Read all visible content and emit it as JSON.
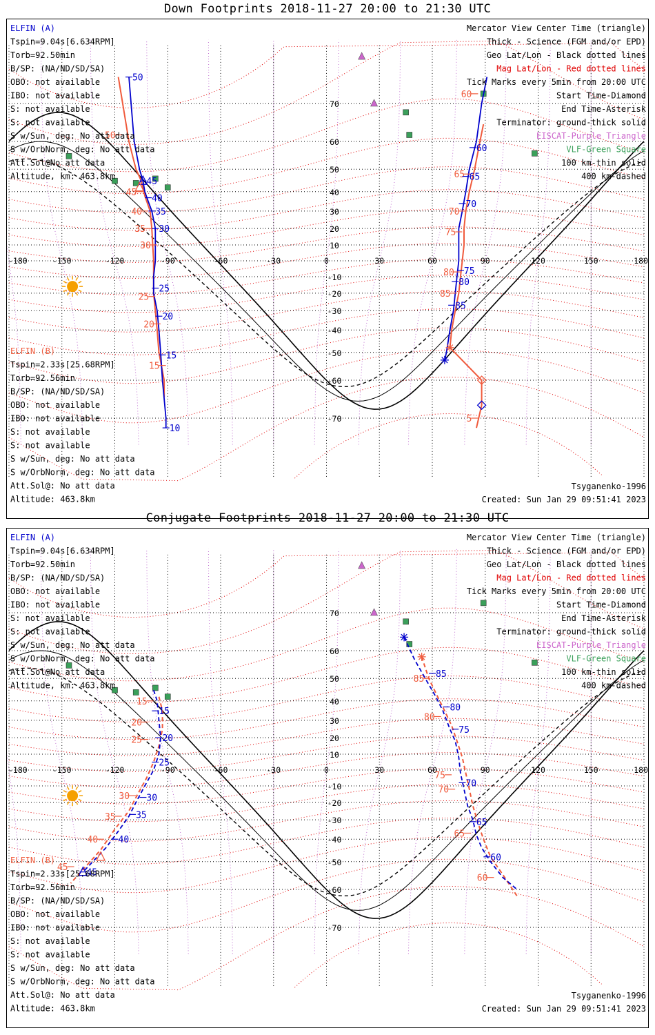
{
  "panels": [
    {
      "title": "Down Footprints 2018-11-27 20:00 to 21:30 UTC",
      "elfin_a": {
        "name": "ELFIN (A)",
        "lines": [
          "Tspin=9.04s[6.634RPM]",
          "Torb=92.50min",
          "B/SP: (NA/ND/SD/SA)",
          "OBO: not available",
          "IBO: not available",
          "S: not available",
          "S: not available",
          "S w/Sun, deg: No att data",
          "S w/OrbNorm, deg: No att data",
          "Att.Sol@No att data",
          "Altitude, km: 463.8km"
        ]
      },
      "elfin_b": {
        "name": "ELFIN (B)",
        "lines": [
          "Tspin=2.33s[25.68RPM]",
          "Torb=92.56min",
          "B/SP: (NA/ND/SD/SA)",
          "OBO: not available",
          "IBO: not available",
          "S: not available",
          "S: not available",
          "S w/Sun, deg: No att data",
          "S w/OrbNorm, deg: No att data",
          "Att.Sol@: No att data",
          "Altitude: 463.8km"
        ]
      },
      "legend": [
        {
          "text": "Mercator View Center Time (triangle)",
          "color": "#000000"
        },
        {
          "text": "Thick - Science (FGM and/or EPD)",
          "color": "#000000"
        },
        {
          "text": "Geo Lat/Lon - Black dotted lines",
          "color": "#000000"
        },
        {
          "text": "Mag Lat/Lon - Red dotted lines",
          "color": "#e00000"
        },
        {
          "text": "Tick Marks every 5min from 20:00 UTC",
          "color": "#000000"
        },
        {
          "text": "Start Time-Diamond",
          "color": "#000000"
        },
        {
          "text": "End Time-Asterisk",
          "color": "#000000"
        },
        {
          "text": "Terminator: ground-thick solid",
          "color": "#000000"
        },
        {
          "text": "EISCAT-Purple Triangle",
          "color": "#cc66cc"
        },
        {
          "text": "VLF-Green Square",
          "color": "#3aa05a"
        },
        {
          "text": "100 km-thin solid",
          "color": "#000000"
        },
        {
          "text": "400 km-dashed",
          "color": "#000000"
        }
      ],
      "model": "Tsyganenko-1996",
      "created": "Created: Sun Jan 29 09:51:41 2023",
      "a_track": {
        "west": [
          [
            -112,
            75
          ],
          [
            -109,
            60
          ],
          [
            -106,
            50
          ],
          [
            -104,
            45
          ],
          [
            -103,
            40
          ],
          [
            -101,
            35
          ],
          [
            -99,
            30
          ],
          [
            -97,
            20
          ],
          [
            -97,
            10
          ],
          [
            -97,
            0
          ],
          [
            -98,
            -10
          ],
          [
            -98,
            -20
          ],
          [
            -96,
            -30
          ],
          [
            -95,
            -40
          ],
          [
            -94,
            -50
          ],
          [
            -93,
            -60
          ],
          [
            -91,
            -70
          ],
          [
            -91,
            -72
          ]
        ],
        "east": [
          [
            91,
            75
          ],
          [
            88,
            70
          ],
          [
            85,
            60
          ],
          [
            81,
            50
          ],
          [
            79,
            40
          ],
          [
            77,
            30
          ],
          [
            75,
            20
          ],
          [
            75,
            10
          ],
          [
            75,
            0
          ],
          [
            74,
            -10
          ],
          [
            73,
            -20
          ],
          [
            72,
            -30
          ],
          [
            70,
            -40
          ],
          [
            68,
            -50
          ],
          [
            67,
            -53
          ]
        ],
        "ticks": [
          {
            "lon": -112,
            "lat": 75,
            "label": "50"
          },
          {
            "lon": -104,
            "lat": 45,
            "label": "45"
          },
          {
            "lon": -101,
            "lat": 37,
            "label": "40"
          },
          {
            "lon": -99,
            "lat": 30,
            "label": "35"
          },
          {
            "lon": -97,
            "lat": 20,
            "label": "30"
          },
          {
            "lon": -97,
            "lat": -17,
            "label": "25"
          },
          {
            "lon": -95,
            "lat": -33,
            "label": "20"
          },
          {
            "lon": -93,
            "lat": -51,
            "label": "15"
          },
          {
            "lon": -91,
            "lat": -72,
            "label": "10"
          },
          {
            "lon": 83,
            "lat": 58,
            "label": "60"
          },
          {
            "lon": 79,
            "lat": 47,
            "label": "65"
          },
          {
            "lon": 77,
            "lat": 34,
            "label": "70"
          },
          {
            "lon": 76,
            "lat": -6,
            "label": "75"
          },
          {
            "lon": 73,
            "lat": -13,
            "label": "80"
          },
          {
            "lon": 71,
            "lat": -27,
            "label": "85"
          }
        ]
      },
      "b_track": {
        "west": [
          [
            -118,
            75
          ],
          [
            -112,
            60
          ],
          [
            -108,
            50
          ],
          [
            -105,
            45
          ],
          [
            -103,
            38
          ],
          [
            -100,
            30
          ],
          [
            -99,
            20
          ],
          [
            -98,
            0
          ],
          [
            -98,
            -20
          ],
          [
            -97,
            -30
          ],
          [
            -96,
            -40
          ],
          [
            -95,
            -50
          ],
          [
            -92,
            -60
          ],
          [
            -92,
            -65
          ]
        ],
        "east": [
          [
            89,
            65
          ],
          [
            87,
            60
          ],
          [
            84,
            50
          ],
          [
            81,
            40
          ],
          [
            79,
            30
          ],
          [
            78,
            20
          ],
          [
            78,
            10
          ],
          [
            77,
            0
          ],
          [
            76,
            -10
          ],
          [
            75,
            -20
          ],
          [
            73,
            -30
          ],
          [
            71,
            -40
          ],
          [
            70,
            -48
          ],
          [
            88,
            -60
          ],
          [
            88,
            -67
          ],
          [
            85,
            -72
          ]
        ],
        "ticks": [
          {
            "lon": -118,
            "lat": 62,
            "label": "50"
          },
          {
            "lon": -106,
            "lat": 40,
            "label": "45"
          },
          {
            "lon": -103,
            "lat": 30,
            "label": "40"
          },
          {
            "lon": -101,
            "lat": 20,
            "label": "35"
          },
          {
            "lon": -98,
            "lat": 10,
            "label": "30"
          },
          {
            "lon": -99,
            "lat": -22,
            "label": "25"
          },
          {
            "lon": -96,
            "lat": -37,
            "label": "20"
          },
          {
            "lon": -93,
            "lat": -55,
            "label": "15"
          },
          {
            "lon": 84,
            "lat": 72,
            "label": "60"
          },
          {
            "lon": 80,
            "lat": 48,
            "label": "65"
          },
          {
            "lon": 77,
            "lat": 30,
            "label": "70"
          },
          {
            "lon": 75,
            "lat": 18,
            "label": "75"
          },
          {
            "lon": 74,
            "lat": -7,
            "label": "80"
          },
          {
            "lon": 72,
            "lat": -20,
            "label": "85"
          },
          {
            "lon": 84,
            "lat": -70,
            "label": "5"
          }
        ]
      }
    },
    {
      "title": "Conjugate Footprints 2018-11-27 20:00 to 21:30 UTC",
      "elfin_a": {
        "name": "ELFIN (A)",
        "lines": [
          "Tspin=9.04s[6.634RPM]",
          "Torb=92.50min",
          "B/SP: (NA/ND/SD/SA)",
          "OBO: not available",
          "IBO: not available",
          "S: not available",
          "S: not available",
          "S w/Sun, deg: No att data",
          "S w/OrbNorm, deg: No att data",
          "Att.Sol@No att data",
          "Altitude, km: 463.8km"
        ]
      },
      "elfin_b": {
        "name": "ELFIN (B)",
        "lines": [
          "Tspin=2.33s[25.68RPM]",
          "Torb=92.56min",
          "B/SP: (NA/ND/SD/SA)",
          "OBO: not available",
          "IBO: not available",
          "S: not available",
          "S: not available",
          "S w/Sun, deg: No att data",
          "S w/OrbNorm, deg: No att data",
          "Att.Sol@: No att data",
          "Altitude: 463.8km"
        ]
      },
      "legend": [
        {
          "text": "Mercator View Center Time (triangle)",
          "color": "#000000"
        },
        {
          "text": "Thick - Science (FGM and/or EPD)",
          "color": "#000000"
        },
        {
          "text": "Geo Lat/Lon - Black dotted lines",
          "color": "#000000"
        },
        {
          "text": "Mag Lat/Lon - Red dotted lines",
          "color": "#e00000"
        },
        {
          "text": "Tick Marks every 5min from 20:00 UTC",
          "color": "#000000"
        },
        {
          "text": "Start Time-Diamond",
          "color": "#000000"
        },
        {
          "text": "End Time-Asterisk",
          "color": "#000000"
        },
        {
          "text": "Terminator: ground-thick solid",
          "color": "#000000"
        },
        {
          "text": "EISCAT-Purple Triangle",
          "color": "#cc66cc"
        },
        {
          "text": "VLF-Green Square",
          "color": "#3aa05a"
        },
        {
          "text": "100 km-thin solid",
          "color": "#000000"
        },
        {
          "text": "400 km-dashed",
          "color": "#000000"
        }
      ],
      "model": "Tsyganenko-1996",
      "created": "Created: Sun Jan 29 09:51:41 2023",
      "a_track": {
        "west": [
          [
            -98,
            45
          ],
          [
            -96,
            40
          ],
          [
            -95,
            30
          ],
          [
            -94,
            20
          ],
          [
            -95,
            10
          ],
          [
            -98,
            0
          ],
          [
            -103,
            -10
          ],
          [
            -108,
            -20
          ],
          [
            -112,
            -28
          ],
          [
            -118,
            -36
          ],
          [
            -125,
            -44
          ],
          [
            -138,
            -54
          ]
        ],
        "east": [
          [
            44,
            64
          ],
          [
            50,
            57
          ],
          [
            56,
            50
          ],
          [
            62,
            42
          ],
          [
            66,
            35
          ],
          [
            70,
            25
          ],
          [
            73,
            18
          ],
          [
            75,
            8
          ],
          [
            76,
            -2
          ],
          [
            78,
            -12
          ],
          [
            80,
            -22
          ],
          [
            83,
            -30
          ],
          [
            85,
            -38
          ],
          [
            88,
            -44
          ],
          [
            93,
            -50
          ],
          [
            100,
            -56
          ],
          [
            108,
            -60
          ]
        ],
        "ticks": [
          {
            "lon": -97,
            "lat": 35,
            "label": "15"
          },
          {
            "lon": -95,
            "lat": 20,
            "label": "20"
          },
          {
            "lon": -97,
            "lat": 5,
            "label": "25"
          },
          {
            "lon": -104,
            "lat": -17,
            "label": "30"
          },
          {
            "lon": -110,
            "lat": -27,
            "label": "35"
          },
          {
            "lon": -120,
            "lat": -40,
            "label": "40"
          },
          {
            "lon": -138,
            "lat": -54,
            "label": "45"
          },
          {
            "lon": 60,
            "lat": 52,
            "label": "85"
          },
          {
            "lon": 68,
            "lat": 37,
            "label": "80"
          },
          {
            "lon": 73,
            "lat": 25,
            "label": "75"
          },
          {
            "lon": 77,
            "lat": -8,
            "label": "70"
          },
          {
            "lon": 83,
            "lat": -31,
            "label": "65"
          },
          {
            "lon": 91,
            "lat": -48,
            "label": "60"
          }
        ]
      },
      "b_track": {
        "west": [
          [
            -95,
            42
          ],
          [
            -93,
            35
          ],
          [
            -93,
            25
          ],
          [
            -95,
            15
          ],
          [
            -98,
            5
          ],
          [
            -102,
            -5
          ],
          [
            -107,
            -15
          ],
          [
            -112,
            -25
          ],
          [
            -120,
            -35
          ],
          [
            -128,
            -45
          ],
          [
            -145,
            -58
          ]
        ],
        "east": [
          [
            54,
            58
          ],
          [
            58,
            50
          ],
          [
            63,
            42
          ],
          [
            67,
            35
          ],
          [
            71,
            27
          ],
          [
            74,
            18
          ],
          [
            77,
            8
          ],
          [
            79,
            -2
          ],
          [
            81,
            -12
          ],
          [
            83,
            -22
          ],
          [
            86,
            -32
          ],
          [
            89,
            -40
          ],
          [
            93,
            -48
          ],
          [
            100,
            -55
          ],
          [
            108,
            -62
          ]
        ],
        "ticks": [
          {
            "lon": -100,
            "lat": 40,
            "label": "15"
          },
          {
            "lon": -103,
            "lat": 29,
            "label": "20"
          },
          {
            "lon": -103,
            "lat": 19,
            "label": "25"
          },
          {
            "lon": -110,
            "lat": -16,
            "label": "30"
          },
          {
            "lon": -118,
            "lat": -28,
            "label": "35"
          },
          {
            "lon": -128,
            "lat": -40,
            "label": "40"
          },
          {
            "lon": -145,
            "lat": -52,
            "label": "45"
          },
          {
            "lon": 57,
            "lat": 50,
            "label": "85"
          },
          {
            "lon": 63,
            "lat": 32,
            "label": "80"
          },
          {
            "lon": 69,
            "lat": -3,
            "label": "75"
          },
          {
            "lon": 71,
            "lat": -12,
            "label": "70"
          },
          {
            "lon": 80,
            "lat": -37,
            "label": "65"
          },
          {
            "lon": 93,
            "lat": -56,
            "label": "60"
          }
        ]
      }
    }
  ],
  "axis": {
    "lon_labels": [
      "-180",
      "-150",
      "-120",
      "-90",
      "-60",
      "-30",
      "0",
      "30",
      "60",
      "90",
      "120",
      "150",
      "180"
    ],
    "lat_labels": [
      "70",
      "60",
      "50",
      "40",
      "30",
      "20",
      "10",
      "-10",
      "-20",
      "-30",
      "-40",
      "-50",
      "-60",
      "-70"
    ]
  },
  "colors": {
    "elfin_a": "#0000cc",
    "elfin_b": "#f05a3c",
    "mag_grid": "#e00000",
    "eiscat": "#cc66cc",
    "vlf": "#3aa05a",
    "sun": "#f5a000"
  }
}
